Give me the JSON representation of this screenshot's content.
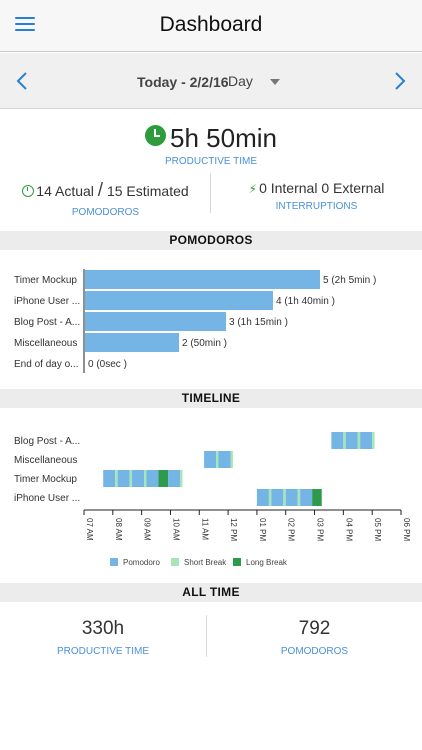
{
  "header": {
    "title": "Dashboard",
    "menu_icon": "hamburger-menu-icon"
  },
  "datebar": {
    "date": "Today - 2/2/16",
    "range": "Day",
    "prev_icon": "chevron-left-icon",
    "next_icon": "chevron-right-icon"
  },
  "summary": {
    "productive_time": "5h 50min",
    "productive_caption": "PRODUCTIVE TIME",
    "actual": "14 Actual",
    "estimated": "15 Estimated",
    "pomodoros_caption": "POMODOROS",
    "interruptions": "0 Internal 0 External",
    "interruptions_caption": "INTERRUPTIONS"
  },
  "sections": {
    "pomodoros": "POMODOROS",
    "timeline": "TIMELINE",
    "all_time": "ALL TIME"
  },
  "chart_data": [
    {
      "type": "bar",
      "orientation": "horizontal",
      "categories": [
        "Timer Mockup",
        "iPhone User ...",
        "Blog Post - A...",
        "Miscellaneous",
        "End of day o..."
      ],
      "values": [
        5,
        4,
        3,
        2,
        0
      ],
      "value_labels": [
        "5 (2h 5min )",
        "4 (1h 40min )",
        "3 (1h 15min )",
        "2 (50min )",
        "0 (0sec )"
      ],
      "color": "#74b5e6"
    },
    {
      "type": "timeline",
      "categories": [
        "Blog Post - A...",
        "Miscellaneous",
        "Timer Mockup",
        "iPhone User ..."
      ],
      "x_ticks": [
        "07 AM",
        "08 AM",
        "09 AM",
        "10 AM",
        "11 AM",
        "12 PM",
        "01 PM",
        "02 PM",
        "03 PM",
        "04 PM",
        "05 PM",
        "06 PM"
      ],
      "x_range": [
        "07 AM",
        "06 PM"
      ],
      "legend": [
        {
          "name": "Pomodoro",
          "color": "#74b5e6"
        },
        {
          "name": "Short Break",
          "color": "#a6e6b6"
        },
        {
          "name": "Long Break",
          "color": "#2e9b4c"
        }
      ],
      "segments": [
        {
          "row": 0,
          "start": "15:35",
          "end": "16:00",
          "kind": "Pomodoro"
        },
        {
          "row": 0,
          "start": "16:00",
          "end": "16:05",
          "kind": "Short Break"
        },
        {
          "row": 0,
          "start": "16:05",
          "end": "16:30",
          "kind": "Pomodoro"
        },
        {
          "row": 0,
          "start": "16:30",
          "end": "16:35",
          "kind": "Short Break"
        },
        {
          "row": 0,
          "start": "16:35",
          "end": "17:00",
          "kind": "Pomodoro"
        },
        {
          "row": 0,
          "start": "17:00",
          "end": "17:05",
          "kind": "Short Break"
        },
        {
          "row": 1,
          "start": "11:10",
          "end": "11:35",
          "kind": "Pomodoro"
        },
        {
          "row": 1,
          "start": "11:35",
          "end": "11:40",
          "kind": "Short Break"
        },
        {
          "row": 1,
          "start": "11:40",
          "end": "12:05",
          "kind": "Pomodoro"
        },
        {
          "row": 1,
          "start": "12:05",
          "end": "12:10",
          "kind": "Short Break"
        },
        {
          "row": 2,
          "start": "07:40",
          "end": "08:05",
          "kind": "Pomodoro"
        },
        {
          "row": 2,
          "start": "08:05",
          "end": "08:10",
          "kind": "Short Break"
        },
        {
          "row": 2,
          "start": "08:10",
          "end": "08:35",
          "kind": "Pomodoro"
        },
        {
          "row": 2,
          "start": "08:35",
          "end": "08:40",
          "kind": "Short Break"
        },
        {
          "row": 2,
          "start": "08:40",
          "end": "09:05",
          "kind": "Pomodoro"
        },
        {
          "row": 2,
          "start": "09:05",
          "end": "09:10",
          "kind": "Short Break"
        },
        {
          "row": 2,
          "start": "09:10",
          "end": "09:35",
          "kind": "Pomodoro"
        },
        {
          "row": 2,
          "start": "09:35",
          "end": "09:55",
          "kind": "Long Break"
        },
        {
          "row": 2,
          "start": "09:55",
          "end": "10:20",
          "kind": "Pomodoro"
        },
        {
          "row": 2,
          "start": "10:20",
          "end": "10:25",
          "kind": "Short Break"
        },
        {
          "row": 3,
          "start": "13:00",
          "end": "13:25",
          "kind": "Pomodoro"
        },
        {
          "row": 3,
          "start": "13:25",
          "end": "13:30",
          "kind": "Short Break"
        },
        {
          "row": 3,
          "start": "13:30",
          "end": "13:55",
          "kind": "Pomodoro"
        },
        {
          "row": 3,
          "start": "13:55",
          "end": "14:00",
          "kind": "Short Break"
        },
        {
          "row": 3,
          "start": "14:00",
          "end": "14:25",
          "kind": "Pomodoro"
        },
        {
          "row": 3,
          "start": "14:25",
          "end": "14:30",
          "kind": "Short Break"
        },
        {
          "row": 3,
          "start": "14:30",
          "end": "14:55",
          "kind": "Pomodoro"
        },
        {
          "row": 3,
          "start": "14:55",
          "end": "15:15",
          "kind": "Long Break"
        }
      ]
    }
  ],
  "all_time": {
    "productive_time": "330h",
    "productive_caption": "PRODUCTIVE TIME",
    "pomodoros": "792",
    "pomodoros_caption": "POMODOROS"
  }
}
